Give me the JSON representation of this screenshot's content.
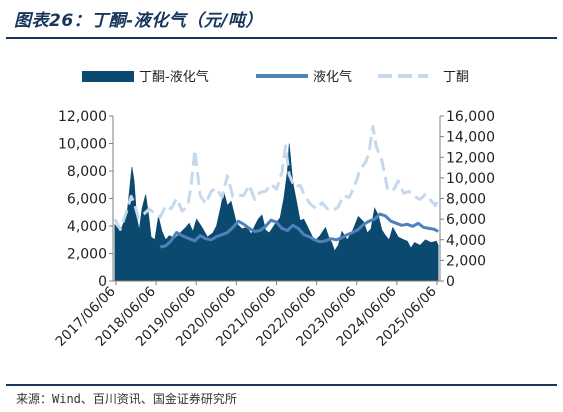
{
  "title": "图表26：丁酮-液化气（元/吨）",
  "source": "来源：Wind、百川资讯、国金证券研究所",
  "colors": {
    "spread": "#0b4a6e",
    "lpg": "#4f81bd",
    "mek": "#c6d9ec",
    "rule": "#16365c"
  },
  "legend": [
    {
      "key": "spread",
      "label": "丁酮-液化气",
      "style": "area"
    },
    {
      "key": "lpg",
      "label": "液化气",
      "style": "solid-line"
    },
    {
      "key": "mek",
      "label": "丁酮",
      "style": "dashed-line"
    }
  ],
  "chart_data": {
    "type": "area",
    "x_tick_labels": [
      "2017/06/06",
      "2018/06/06",
      "2019/06/06",
      "2020/06/06",
      "2021/06/06",
      "2022/06/06",
      "2023/06/06",
      "2024/06/06",
      "2025/06/06"
    ],
    "y_left": {
      "min": 0,
      "max": 12000,
      "tick_labels": [
        "0",
        "2,000",
        "4,000",
        "6,000",
        "8,000",
        "10,000",
        "12,000"
      ]
    },
    "y_right": {
      "min": 0,
      "max": 16000,
      "tick_labels": [
        "0",
        "2,000",
        "4,000",
        "6,000",
        "8,000",
        "10,000",
        "12,000",
        "14,000",
        "16,000"
      ]
    },
    "x_range": [
      2016.9,
      2025.9
    ],
    "series": [
      {
        "name": "丁酮-液化气",
        "axis": "left",
        "kind": "area",
        "x": [
          2016.95,
          2017.1,
          2017.2,
          2017.3,
          2017.42,
          2017.48,
          2017.55,
          2017.62,
          2017.7,
          2017.8,
          2017.9,
          2017.95,
          2018.05,
          2018.15,
          2018.25,
          2018.35,
          2018.45,
          2018.6,
          2018.75,
          2018.9,
          2019.0,
          2019.1,
          2019.2,
          2019.35,
          2019.5,
          2019.65,
          2019.75,
          2019.85,
          2019.95,
          2020.05,
          2020.15,
          2020.3,
          2020.45,
          2020.6,
          2020.7,
          2020.8,
          2020.9,
          2021.0,
          2021.1,
          2021.2,
          2021.35,
          2021.5,
          2021.6,
          2021.7,
          2021.75,
          2021.85,
          2021.95,
          2022.05,
          2022.15,
          2022.3,
          2022.45,
          2022.6,
          2022.75,
          2022.85,
          2022.92,
          2023.0,
          2023.1,
          2023.2,
          2023.35,
          2023.5,
          2023.65,
          2023.8,
          2023.9,
          2024.0,
          2024.1,
          2024.2,
          2024.3,
          2024.4,
          2024.5,
          2024.6,
          2024.75,
          2024.9,
          2025.0,
          2025.1,
          2025.2,
          2025.35,
          2025.5,
          2025.65,
          2025.8,
          2025.85
        ],
        "y": [
          4100,
          3600,
          4300,
          5200,
          8300,
          7300,
          4700,
          3700,
          5300,
          6300,
          4400,
          3200,
          3000,
          4700,
          3600,
          3000,
          3300,
          3100,
          3500,
          3900,
          4200,
          3600,
          4500,
          3900,
          3200,
          3500,
          4000,
          5200,
          6500,
          5500,
          5800,
          4200,
          3800,
          3900,
          3400,
          4000,
          4500,
          4800,
          3700,
          3500,
          4100,
          4600,
          6000,
          8000,
          10000,
          7200,
          5800,
          4400,
          4500,
          3700,
          2900,
          3300,
          3900,
          3100,
          2800,
          2200,
          2600,
          3600,
          3000,
          3700,
          4700,
          4300,
          3500,
          3800,
          5300,
          4800,
          3700,
          3300,
          3000,
          3900,
          3200,
          3000,
          2900,
          2400,
          2800,
          2600,
          3000,
          2800,
          2900,
          2600
        ]
      },
      {
        "name": "液化气",
        "axis": "right",
        "kind": "solid-line",
        "x": [
          2018.2,
          2018.35,
          2018.5,
          2018.65,
          2018.8,
          2019.0,
          2019.15,
          2019.3,
          2019.45,
          2019.6,
          2019.75,
          2019.9,
          2020.05,
          2020.2,
          2020.35,
          2020.5,
          2020.65,
          2020.8,
          2020.95,
          2021.1,
          2021.25,
          2021.4,
          2021.55,
          2021.7,
          2021.85,
          2022.0,
          2022.15,
          2022.3,
          2022.45,
          2022.6,
          2022.75,
          2022.9,
          2023.05,
          2023.2,
          2023.35,
          2023.5,
          2023.65,
          2023.8,
          2023.95,
          2024.1,
          2024.25,
          2024.4,
          2024.55,
          2024.7,
          2024.85,
          2025.0,
          2025.15,
          2025.3,
          2025.45,
          2025.6,
          2025.75,
          2025.85
        ],
        "y": [
          3300,
          3400,
          3900,
          4700,
          4400,
          4100,
          3900,
          4400,
          4100,
          4000,
          4300,
          4500,
          4700,
          5200,
          5800,
          5500,
          5100,
          4800,
          4900,
          5300,
          5900,
          5700,
          5100,
          4900,
          5400,
          5100,
          4500,
          4300,
          4000,
          3800,
          3900,
          4100,
          4000,
          4200,
          4500,
          4700,
          5000,
          5500,
          5800,
          6000,
          6500,
          6300,
          5800,
          5600,
          5400,
          5500,
          5300,
          5600,
          5200,
          5100,
          5000,
          4800
        ]
      },
      {
        "name": "丁酮",
        "axis": "right",
        "kind": "dashed-line",
        "x": [
          2016.95,
          2017.1,
          2017.25,
          2017.4,
          2017.5,
          2017.6,
          2017.75,
          2017.9,
          2018.05,
          2018.2,
          2018.35,
          2018.5,
          2018.65,
          2018.8,
          2018.95,
          2019.05,
          2019.15,
          2019.3,
          2019.45,
          2019.6,
          2019.75,
          2019.9,
          2020.05,
          2020.2,
          2020.35,
          2020.5,
          2020.65,
          2020.8,
          2020.95,
          2021.1,
          2021.25,
          2021.4,
          2021.55,
          2021.65,
          2021.75,
          2021.9,
          2022.05,
          2022.2,
          2022.35,
          2022.5,
          2022.65,
          2022.8,
          2022.95,
          2023.1,
          2023.25,
          2023.4,
          2023.55,
          2023.7,
          2023.85,
          2023.95,
          2024.05,
          2024.15,
          2024.3,
          2024.45,
          2024.6,
          2024.75,
          2024.9,
          2025.05,
          2025.2,
          2025.35,
          2025.5,
          2025.65,
          2025.78,
          2025.85
        ],
        "y": [
          6000,
          5000,
          6500,
          8200,
          7400,
          6100,
          6500,
          7000,
          6500,
          6200,
          7300,
          7000,
          8000,
          6800,
          7200,
          9200,
          12700,
          8300,
          7500,
          8700,
          9000,
          8100,
          10200,
          8200,
          8300,
          8300,
          9300,
          7900,
          8600,
          8700,
          9400,
          8900,
          10500,
          13100,
          10300,
          9100,
          9300,
          8100,
          7400,
          7000,
          7600,
          7000,
          6800,
          7200,
          8300,
          8100,
          9200,
          10800,
          11500,
          12500,
          15000,
          13000,
          11700,
          9000,
          8700,
          9700,
          8500,
          8700,
          8200,
          7900,
          8400,
          7800,
          7300,
          8200
        ]
      }
    ]
  }
}
